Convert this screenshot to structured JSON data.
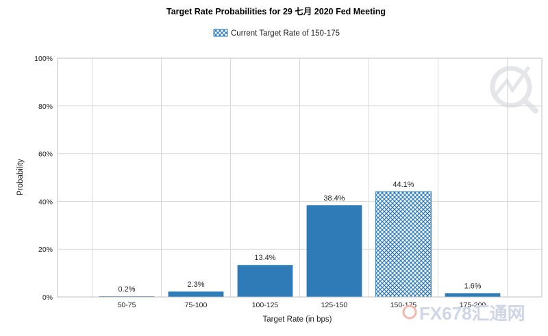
{
  "chart_data": {
    "type": "bar",
    "title": "Target Rate Probabilities for 29 七月 2020 Fed Meeting",
    "xlabel": "Target Rate (in bps)",
    "ylabel": "Probability",
    "categories": [
      "50-75",
      "75-100",
      "100-125",
      "125-150",
      "150-175",
      "175-200"
    ],
    "values": [
      0.2,
      2.3,
      13.4,
      38.4,
      44.1,
      1.6
    ],
    "data_labels": [
      "0.2%",
      "2.3%",
      "13.4%",
      "38.4%",
      "44.1%",
      "1.6%"
    ],
    "yticks": [
      "0%",
      "20%",
      "40%",
      "60%",
      "80%",
      "100%"
    ],
    "ylim": [
      0,
      100
    ],
    "grid": true,
    "legend": {
      "label": "Current Target Rate of 150-175",
      "placement": "top-center"
    },
    "highlight_category": "150-175",
    "colors": {
      "bar": "#2e7bb8",
      "highlight": "#2e7bb8",
      "grid": "#d9d9d9"
    }
  },
  "watermark": {
    "text": "FX678汇通网"
  }
}
